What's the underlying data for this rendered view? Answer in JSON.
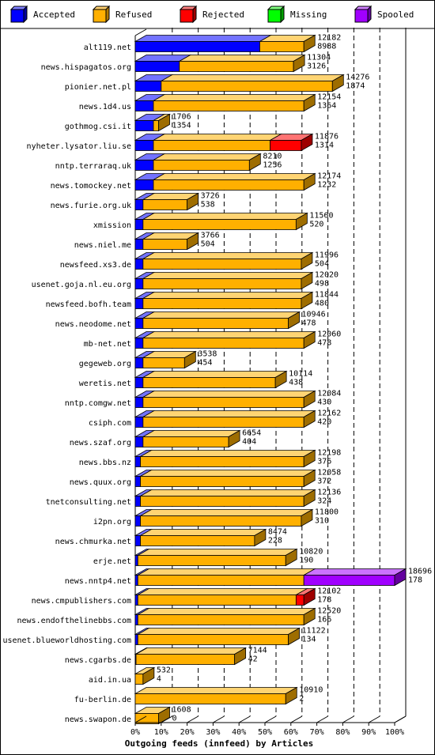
{
  "chart_data": {
    "type": "bar",
    "orientation": "horizontal",
    "stacked": true,
    "normalized": true,
    "xlabel": "Outgoing feeds (innfeed) by Articles",
    "xlim": [
      0,
      100
    ],
    "ticks": [
      "0%",
      "10%",
      "20%",
      "30%",
      "40%",
      "50%",
      "60%",
      "70%",
      "80%",
      "90%",
      "100%"
    ],
    "grid": true,
    "legend_position": "top",
    "series": [
      {
        "name": "Accepted",
        "color": "#0000ff"
      },
      {
        "name": "Refused",
        "color": "#ffb000"
      },
      {
        "name": "Rejected",
        "color": "#ff0000"
      },
      {
        "name": "Missing",
        "color": "#00ff00"
      },
      {
        "name": "Spooled",
        "color": "#a000ff"
      }
    ],
    "rows": [
      {
        "host": "alt119.net",
        "total": "12182",
        "accepted_label": "8988",
        "pct": {
          "Accepted": 48,
          "Refused": 17,
          "Rejected": 0,
          "Missing": 0,
          "Spooled": 0
        }
      },
      {
        "host": "news.hispagatos.org",
        "total": "11304",
        "accepted_label": "3126",
        "pct": {
          "Accepted": 17,
          "Refused": 44,
          "Rejected": 0,
          "Missing": 0,
          "Spooled": 0
        }
      },
      {
        "host": "pionier.net.pl",
        "total": "14276",
        "accepted_label": "1874",
        "pct": {
          "Accepted": 10,
          "Refused": 66,
          "Rejected": 0,
          "Missing": 0,
          "Spooled": 0
        }
      },
      {
        "host": "news.1d4.us",
        "total": "12154",
        "accepted_label": "1364",
        "pct": {
          "Accepted": 7,
          "Refused": 58,
          "Rejected": 0,
          "Missing": 0,
          "Spooled": 0
        }
      },
      {
        "host": "gothmog.csi.it",
        "total": "1706",
        "accepted_label": "1354",
        "pct": {
          "Accepted": 7,
          "Refused": 2,
          "Rejected": 0,
          "Missing": 0,
          "Spooled": 0
        }
      },
      {
        "host": "nyheter.lysator.liu.se",
        "total": "11876",
        "accepted_label": "1314",
        "pct": {
          "Accepted": 7,
          "Refused": 45,
          "Rejected": 12,
          "Missing": 0,
          "Spooled": 0
        }
      },
      {
        "host": "nntp.terraraq.uk",
        "total": "8210",
        "accepted_label": "1256",
        "pct": {
          "Accepted": 7,
          "Refused": 37,
          "Rejected": 0,
          "Missing": 0,
          "Spooled": 0
        }
      },
      {
        "host": "news.tomockey.net",
        "total": "12174",
        "accepted_label": "1232",
        "pct": {
          "Accepted": 7,
          "Refused": 58,
          "Rejected": 0,
          "Missing": 0,
          "Spooled": 0
        }
      },
      {
        "host": "news.furie.org.uk",
        "total": "3726",
        "accepted_label": "538",
        "pct": {
          "Accepted": 3,
          "Refused": 17,
          "Rejected": 0,
          "Missing": 0,
          "Spooled": 0
        }
      },
      {
        "host": "xmission",
        "total": "11560",
        "accepted_label": "520",
        "pct": {
          "Accepted": 3,
          "Refused": 59,
          "Rejected": 0,
          "Missing": 0,
          "Spooled": 0
        }
      },
      {
        "host": "news.niel.me",
        "total": "3766",
        "accepted_label": "504",
        "pct": {
          "Accepted": 3,
          "Refused": 17,
          "Rejected": 0,
          "Missing": 0,
          "Spooled": 0
        }
      },
      {
        "host": "newsfeed.xs3.de",
        "total": "11996",
        "accepted_label": "504",
        "pct": {
          "Accepted": 3,
          "Refused": 61,
          "Rejected": 0,
          "Missing": 0,
          "Spooled": 0
        }
      },
      {
        "host": "usenet.goja.nl.eu.org",
        "total": "12020",
        "accepted_label": "498",
        "pct": {
          "Accepted": 3,
          "Refused": 61,
          "Rejected": 0,
          "Missing": 0,
          "Spooled": 0
        }
      },
      {
        "host": "newsfeed.bofh.team",
        "total": "11844",
        "accepted_label": "480",
        "pct": {
          "Accepted": 3,
          "Refused": 61,
          "Rejected": 0,
          "Missing": 0,
          "Spooled": 0
        }
      },
      {
        "host": "news.neodome.net",
        "total": "10946",
        "accepted_label": "478",
        "pct": {
          "Accepted": 3,
          "Refused": 56,
          "Rejected": 0,
          "Missing": 0,
          "Spooled": 0
        }
      },
      {
        "host": "mb-net.net",
        "total": "12060",
        "accepted_label": "478",
        "pct": {
          "Accepted": 3,
          "Refused": 62,
          "Rejected": 0,
          "Missing": 0,
          "Spooled": 0
        }
      },
      {
        "host": "gegeweb.org",
        "total": "3538",
        "accepted_label": "454",
        "pct": {
          "Accepted": 3,
          "Refused": 16,
          "Rejected": 0,
          "Missing": 0,
          "Spooled": 0
        }
      },
      {
        "host": "weretis.net",
        "total": "10114",
        "accepted_label": "438",
        "pct": {
          "Accepted": 3,
          "Refused": 51,
          "Rejected": 0,
          "Missing": 0,
          "Spooled": 0
        }
      },
      {
        "host": "nntp.comgw.net",
        "total": "12084",
        "accepted_label": "430",
        "pct": {
          "Accepted": 3,
          "Refused": 62,
          "Rejected": 0,
          "Missing": 0,
          "Spooled": 0
        }
      },
      {
        "host": "csiph.com",
        "total": "12162",
        "accepted_label": "420",
        "pct": {
          "Accepted": 3,
          "Refused": 62,
          "Rejected": 0,
          "Missing": 0,
          "Spooled": 0
        }
      },
      {
        "host": "news.szaf.org",
        "total": "6654",
        "accepted_label": "404",
        "pct": {
          "Accepted": 3,
          "Refused": 33,
          "Rejected": 0,
          "Missing": 0,
          "Spooled": 0
        }
      },
      {
        "host": "news.bbs.nz",
        "total": "12198",
        "accepted_label": "376",
        "pct": {
          "Accepted": 2,
          "Refused": 63,
          "Rejected": 0,
          "Missing": 0,
          "Spooled": 0
        }
      },
      {
        "host": "news.quux.org",
        "total": "12058",
        "accepted_label": "372",
        "pct": {
          "Accepted": 2,
          "Refused": 63,
          "Rejected": 0,
          "Missing": 0,
          "Spooled": 0
        }
      },
      {
        "host": "tnetconsulting.net",
        "total": "12136",
        "accepted_label": "324",
        "pct": {
          "Accepted": 2,
          "Refused": 63,
          "Rejected": 0,
          "Missing": 0,
          "Spooled": 0
        }
      },
      {
        "host": "i2pn.org",
        "total": "11800",
        "accepted_label": "310",
        "pct": {
          "Accepted": 2,
          "Refused": 62,
          "Rejected": 0,
          "Missing": 0,
          "Spooled": 0
        }
      },
      {
        "host": "news.chmurka.net",
        "total": "8474",
        "accepted_label": "228",
        "pct": {
          "Accepted": 2,
          "Refused": 44,
          "Rejected": 0,
          "Missing": 0,
          "Spooled": 0
        }
      },
      {
        "host": "erje.net",
        "total": "10820",
        "accepted_label": "190",
        "pct": {
          "Accepted": 1,
          "Refused": 57,
          "Rejected": 0,
          "Missing": 0,
          "Spooled": 0
        }
      },
      {
        "host": "news.nntp4.net",
        "total": "18696",
        "accepted_label": "178",
        "pct": {
          "Accepted": 1,
          "Refused": 64,
          "Rejected": 0,
          "Missing": 0,
          "Spooled": 35
        }
      },
      {
        "host": "news.cmpublishers.com",
        "total": "12102",
        "accepted_label": "178",
        "pct": {
          "Accepted": 1,
          "Refused": 61,
          "Rejected": 3,
          "Missing": 0,
          "Spooled": 0
        }
      },
      {
        "host": "news.endofthelinebbs.com",
        "total": "12520",
        "accepted_label": "166",
        "pct": {
          "Accepted": 1,
          "Refused": 64,
          "Rejected": 0,
          "Missing": 0,
          "Spooled": 0
        }
      },
      {
        "host": "usenet.blueworldhosting.com",
        "total": "11122",
        "accepted_label": "134",
        "pct": {
          "Accepted": 1,
          "Refused": 58,
          "Rejected": 0,
          "Missing": 0,
          "Spooled": 0
        }
      },
      {
        "host": "news.cgarbs.de",
        "total": "7144",
        "accepted_label": "42",
        "pct": {
          "Accepted": 0.3,
          "Refused": 38,
          "Rejected": 0,
          "Missing": 0,
          "Spooled": 0
        }
      },
      {
        "host": "aid.in.ua",
        "total": "532",
        "accepted_label": "4",
        "pct": {
          "Accepted": 0,
          "Refused": 3,
          "Rejected": 0,
          "Missing": 0,
          "Spooled": 0
        }
      },
      {
        "host": "fu-berlin.de",
        "total": "10910",
        "accepted_label": "2",
        "pct": {
          "Accepted": 0,
          "Refused": 58,
          "Rejected": 0,
          "Missing": 0,
          "Spooled": 0
        }
      },
      {
        "host": "news.swapon.de",
        "total": "1608",
        "accepted_label": "0",
        "pct": {
          "Accepted": 0,
          "Refused": 9,
          "Rejected": 0,
          "Missing": 0,
          "Spooled": 0
        }
      }
    ]
  }
}
